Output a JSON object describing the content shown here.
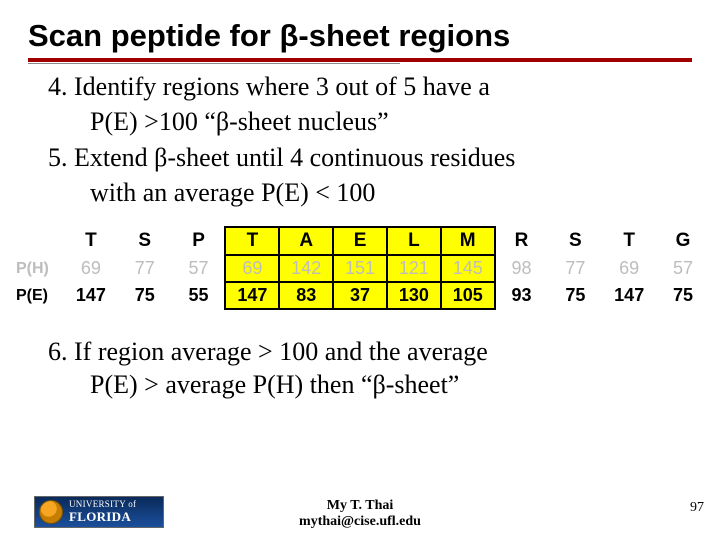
{
  "title": "Scan peptide for β-sheet regions",
  "steps": {
    "s4a": "4. Identify regions where 3 out of 5 have a",
    "s4b": "P(E) >100 “β-sheet nucleus”",
    "s5a": "5. Extend β-sheet until 4 continuous residues",
    "s5b": "with an average P(E) < 100",
    "s6a": "6. If region average > 100 and the average",
    "s6b": "P(E) > average P(H) then “β-sheet”"
  },
  "table": {
    "row_headers": {
      "ph": "P(H)",
      "pe": "P(E)"
    },
    "residues": [
      "T",
      "S",
      "P",
      "T",
      "A",
      "E",
      "L",
      "M",
      "R",
      "S",
      "T",
      "G"
    ],
    "ph": [
      "69",
      "77",
      "57",
      "69",
      "142",
      "151",
      "121",
      "145",
      "98",
      "77",
      "69",
      "57"
    ],
    "pe": [
      "147",
      "75",
      "55",
      "147",
      "83",
      "37",
      "130",
      "105",
      "93",
      "75",
      "147",
      "75"
    ],
    "highlight_cols": [
      3,
      4,
      5,
      6,
      7
    ],
    "colors": {
      "highlight_bg": "#ffff00",
      "ph_text": "#bdbdbd",
      "pe_text": "#000000"
    }
  },
  "footer": {
    "author": "My T. Thai",
    "email": "mythai@cise.ufl.edu",
    "page": "97",
    "logo_top": "UNIVERSITY of",
    "logo_bottom": "FLORIDA"
  }
}
